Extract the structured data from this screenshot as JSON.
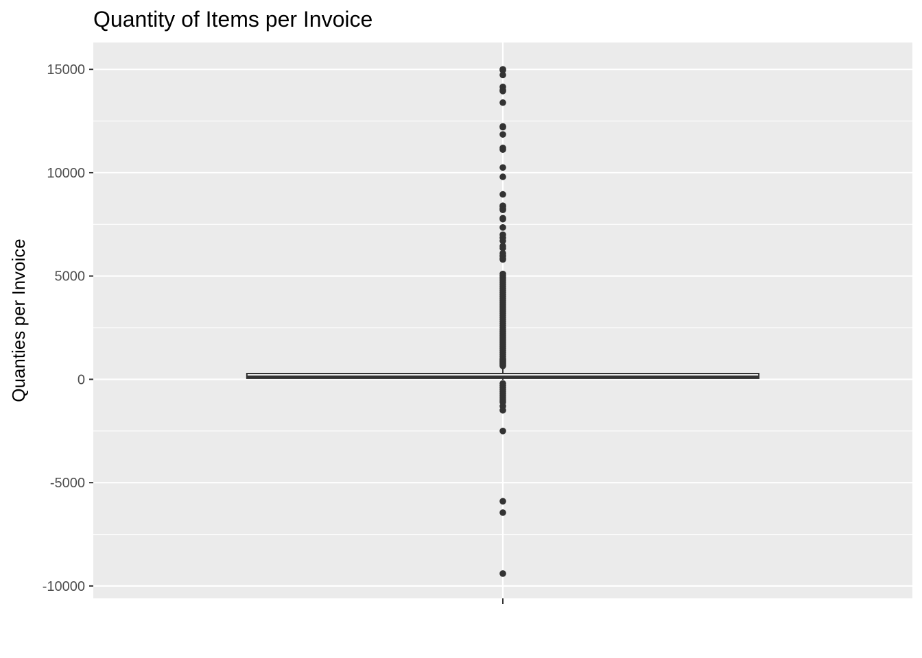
{
  "chart_data": {
    "type": "box",
    "title": "Quantity of Items per Invoice",
    "xlabel": "",
    "ylabel": "Quanties per Invoice",
    "ylim": [
      -10600,
      16300
    ],
    "yticks": [
      -10000,
      -5000,
      0,
      5000,
      10000,
      15000
    ],
    "y_minor_ticks": [
      -7500,
      -2500,
      2500,
      7500,
      12500
    ],
    "xtick_labels": [
      ""
    ],
    "grid": true,
    "background": "#EBEBEB",
    "grid_color": "#FFFFFF",
    "box_color": "#333333",
    "box": {
      "q1": 50,
      "median": 120,
      "q3": 280,
      "whisker_low": -20,
      "whisker_high": 600
    },
    "outliers": [
      15000,
      14960,
      14730,
      14150,
      14000,
      13950,
      13390,
      12240,
      12200,
      11850,
      11200,
      11120,
      10250,
      9800,
      8950,
      8400,
      8350,
      8250,
      8200,
      7800,
      7750,
      7350,
      7000,
      6850,
      6700,
      6450,
      6350,
      6100,
      6000,
      5950,
      5850,
      5800,
      5100,
      5000,
      4900,
      4800,
      4700,
      4600,
      4500,
      4400,
      4300,
      4200,
      4100,
      4000,
      3900,
      3800,
      3700,
      3600,
      3500,
      3400,
      3300,
      3200,
      3100,
      3000,
      2900,
      2800,
      2700,
      2600,
      2500,
      2400,
      2300,
      2200,
      2100,
      2000,
      1900,
      1800,
      1700,
      1600,
      1500,
      1400,
      1300,
      1200,
      1100,
      1000,
      950,
      900,
      850,
      800,
      750,
      700,
      650,
      -200,
      -300,
      -400,
      -500,
      -600,
      -700,
      -800,
      -900,
      -1000,
      -1100,
      -1300,
      -1500,
      -2500,
      -5900,
      -6450,
      -9400
    ]
  }
}
